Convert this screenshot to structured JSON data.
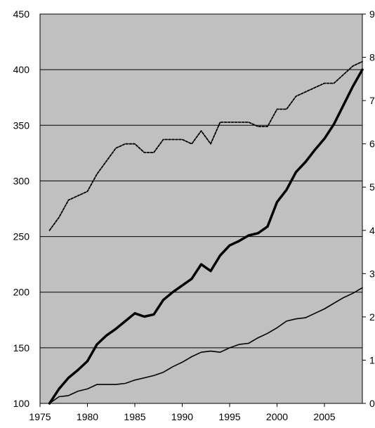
{
  "colors": {
    "plot_background": "#c0c0c0",
    "gridline": "#000000",
    "series": "#000000"
  },
  "chart_data": {
    "type": "line",
    "x_ticks": [
      "1975",
      "1980",
      "1985",
      "1990",
      "1995",
      "2000",
      "2005"
    ],
    "y_left_ticks": [
      "100",
      "150",
      "200",
      "250",
      "300",
      "350",
      "400",
      "450"
    ],
    "y_right_ticks": [
      "0",
      "1",
      "2",
      "3",
      "4",
      "5",
      "6",
      "7",
      "8",
      "9"
    ],
    "xlim": [
      1975,
      2009
    ],
    "ylim_left": [
      100,
      450
    ],
    "ylim_right": [
      0,
      9
    ],
    "grid": true,
    "x": [
      1976,
      1977,
      1978,
      1979,
      1980,
      1981,
      1982,
      1983,
      1984,
      1985,
      1986,
      1987,
      1988,
      1989,
      1990,
      1991,
      1992,
      1993,
      1994,
      1995,
      1996,
      1997,
      1998,
      1999,
      2000,
      2001,
      2002,
      2003,
      2004,
      2005,
      2006,
      2007,
      2008,
      2009
    ],
    "series": [
      {
        "axis": "left",
        "style": "thick-solid",
        "values": [
          100,
          113,
          123,
          130,
          138,
          153,
          161,
          167,
          174,
          181,
          178,
          180,
          193,
          200,
          206,
          212,
          225,
          219,
          233,
          242,
          246,
          251,
          253,
          259,
          281,
          292,
          308,
          317,
          328,
          338,
          351,
          368,
          385,
          400
        ]
      },
      {
        "axis": "left",
        "style": "thin-solid",
        "values": [
          100,
          106,
          107,
          111,
          113,
          117,
          117,
          117,
          118,
          121,
          123,
          125,
          128,
          133,
          137,
          142,
          146,
          147,
          146,
          150,
          153,
          154,
          159,
          163,
          168,
          174,
          176,
          177,
          181,
          185,
          190,
          195,
          199,
          204
        ]
      },
      {
        "axis": "right",
        "style": "dotted",
        "values": [
          4.0,
          4.3,
          4.7,
          4.8,
          4.9,
          5.3,
          5.6,
          5.9,
          6.0,
          6.0,
          5.8,
          5.8,
          6.1,
          6.1,
          6.1,
          6.0,
          6.3,
          6.0,
          6.5,
          6.5,
          6.5,
          6.5,
          6.4,
          6.4,
          6.8,
          6.8,
          7.1,
          7.2,
          7.3,
          7.4,
          7.4,
          7.6,
          7.8,
          7.9
        ]
      }
    ]
  }
}
